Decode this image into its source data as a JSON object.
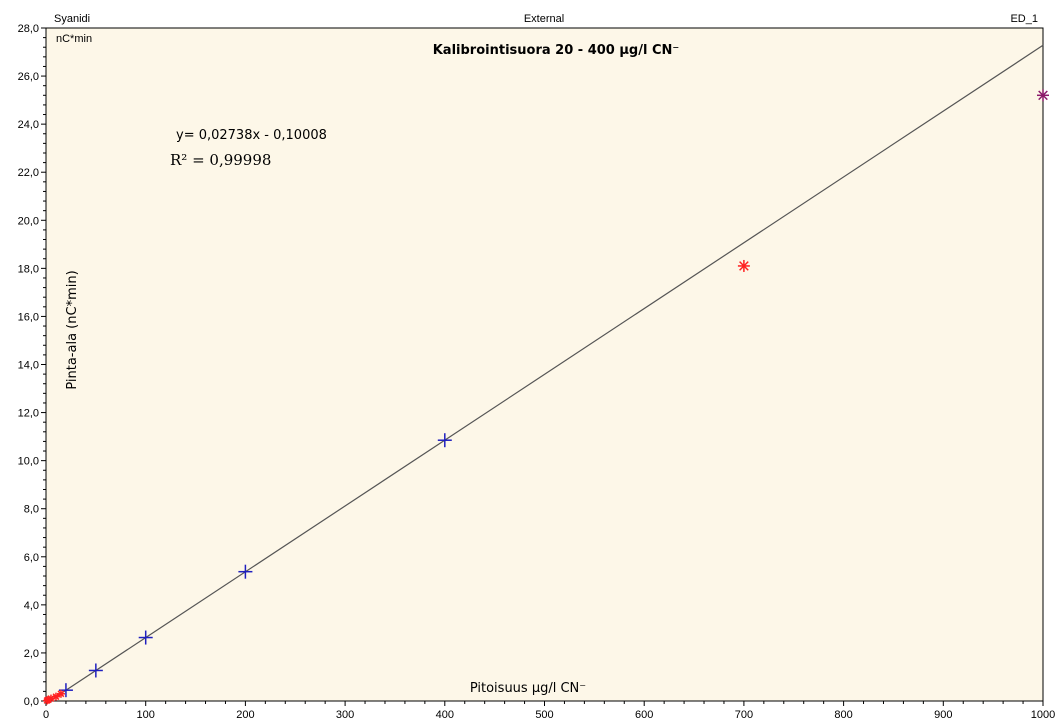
{
  "header": {
    "left": "Syanidi",
    "center": "External",
    "right": "ED_1"
  },
  "chart_data": {
    "type": "scatter",
    "title": "Kalibrointisuora 20 - 400 µg/l CN⁻",
    "unit_label": "nC*min",
    "xlabel": "Pitoisuus µg/l CN⁻",
    "ylabel": "Pinta-ala (nC*min)",
    "equation": "y= 0,02738x  - 0,10008",
    "r2_label": "R² = 0,99998",
    "xlim": [
      0,
      1000
    ],
    "ylim": [
      0,
      28
    ],
    "x_ticks": [
      0,
      100,
      200,
      300,
      400,
      500,
      600,
      700,
      800,
      900,
      1000
    ],
    "y_ticks": [
      "0,0",
      "2,0",
      "4,0",
      "6,0",
      "8,0",
      "10,0",
      "12,0",
      "14,0",
      "16,0",
      "18,0",
      "20,0",
      "22,0",
      "24,0",
      "26,0",
      "28,0"
    ],
    "fit": {
      "slope": 0.02738,
      "intercept": -0.10008,
      "color": "#555555"
    },
    "series": [
      {
        "marker": "plus",
        "color": "#1f1fbf",
        "points": [
          [
            20,
            0.45
          ],
          [
            50,
            1.27
          ],
          [
            100,
            2.64
          ],
          [
            200,
            5.38
          ],
          [
            400,
            10.85
          ]
        ]
      },
      {
        "marker": "asterisk",
        "color": "#ff2020",
        "points": [
          [
            1,
            0.02
          ],
          [
            2,
            0.05
          ],
          [
            5,
            0.1
          ],
          [
            10,
            0.18
          ],
          [
            15,
            0.3
          ],
          [
            700,
            18.1
          ]
        ]
      },
      {
        "marker": "asterisk",
        "color": "#8b1a6b",
        "points": [
          [
            1000,
            25.2
          ]
        ]
      }
    ],
    "background": "#fdf7e8",
    "grid": false
  }
}
